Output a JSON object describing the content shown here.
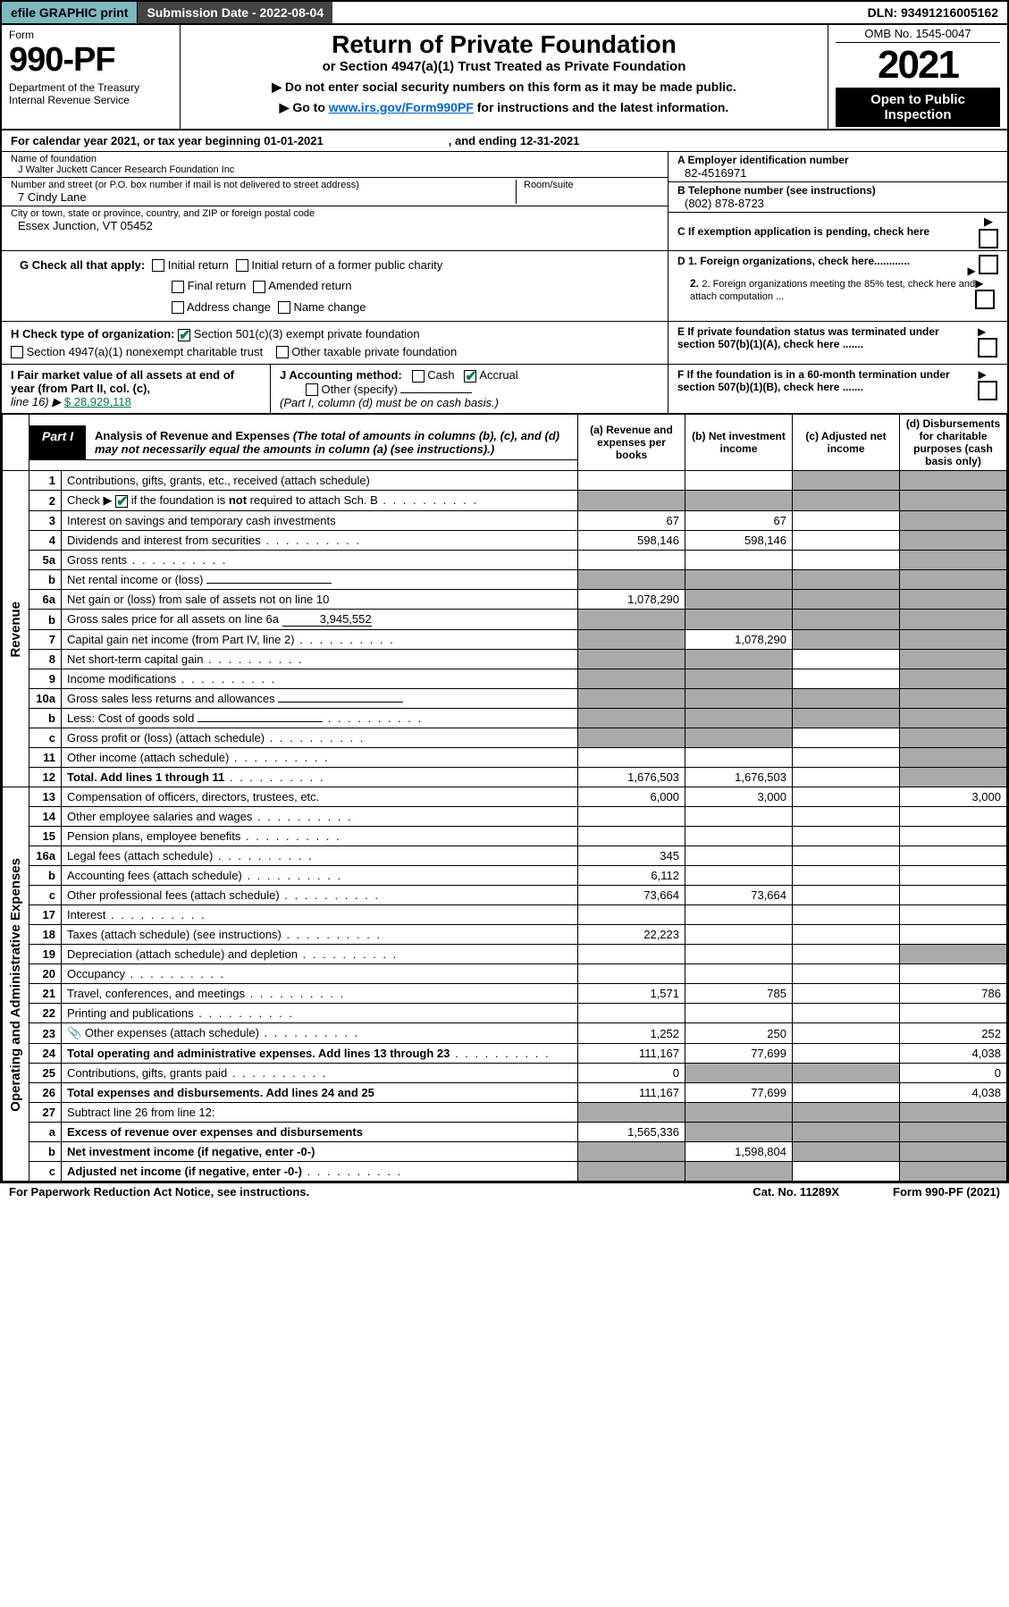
{
  "topbar": {
    "efile": "efile GRAPHIC print",
    "subdate": "Submission Date - 2022-08-04",
    "dln": "DLN: 93491216005162"
  },
  "hdr": {
    "form_lbl": "Form",
    "form_num": "990-PF",
    "dept": "Department of the Treasury\nInternal Revenue Service",
    "title": "Return of Private Foundation",
    "sub": "or Section 4947(a)(1) Trust Treated as Private Foundation",
    "instr1": "▶ Do not enter social security numbers on this form as it may be made public.",
    "instr2": "▶ Go to ",
    "instr2_link": "www.irs.gov/Form990PF",
    "instr2_rest": " for instructions and the latest information.",
    "omb": "OMB No. 1545-0047",
    "year": "2021",
    "open": "Open to Public Inspection"
  },
  "calyr": {
    "pre": "For calendar year 2021, or tax year beginning ",
    "start": "01-01-2021",
    "mid": ", and ending ",
    "end": "12-31-2021"
  },
  "ent": {
    "name_lbl": "Name of foundation",
    "name": "J Walter Juckett Cancer Research Foundation Inc",
    "addr_lbl": "Number and street (or P.O. box number if mail is not delivered to street address)",
    "room_lbl": "Room/suite",
    "addr": "7 Cindy Lane",
    "city_lbl": "City or town, state or province, country, and ZIP or foreign postal code",
    "city": "Essex Junction, VT  05452",
    "a_lbl": "A Employer identification number",
    "a": "82-4516971",
    "b_lbl": "B Telephone number (see instructions)",
    "b": "(802) 878-8723",
    "c_lbl": "C If exemption application is pending, check here"
  },
  "g": {
    "lbl": "G Check all that apply:",
    "opts": [
      "Initial return",
      "Initial return of a former public charity",
      "Final return",
      "Amended return",
      "Address change",
      "Name change"
    ]
  },
  "h": {
    "lbl": "H Check type of organization:",
    "o1": "Section 501(c)(3) exempt private foundation",
    "o2": "Section 4947(a)(1) nonexempt charitable trust",
    "o3": "Other taxable private foundation"
  },
  "d": {
    "d1": "D 1. Foreign organizations, check here............",
    "d2": "2. Foreign organizations meeting the 85% test, check here and attach computation ..."
  },
  "e": "E  If private foundation status was terminated under section 507(b)(1)(A), check here .......",
  "f": "F  If the foundation is in a 60-month termination under section 507(b)(1)(B), check here .......",
  "i": {
    "lbl": "I Fair market value of all assets at end of year (from Part II, col. (c),",
    "line": "line 16) ▶",
    "val": "$  28,929,118"
  },
  "j": {
    "lbl": "J Accounting method:",
    "cash": "Cash",
    "accrual": "Accrual",
    "other": "Other (specify)",
    "note": "(Part I, column (d) must be on cash basis.)"
  },
  "part1": {
    "tag": "Part I",
    "title": "Analysis of Revenue and Expenses ",
    "note": "(The total of amounts in columns (b), (c), and (d) may not necessarily equal the amounts in column (a) (see instructions).)"
  },
  "cols": {
    "a": "(a)   Revenue and expenses per books",
    "b": "(b)   Net investment income",
    "c": "(c)   Adjusted net income",
    "d": "(d)  Disbursements for charitable purposes (cash basis only)"
  },
  "groups": {
    "rev": "Revenue",
    "opex": "Operating and Administrative Expenses"
  },
  "rows": [
    {
      "n": "1",
      "t": "Contributions, gifts, grants, etc., received (attach schedule)",
      "a": "",
      "b": "",
      "c": "s",
      "d": "s"
    },
    {
      "n": "2",
      "t": "Check ▶ ☑ if the foundation is not required to attach Sch. B",
      "t_html": true,
      "a": "s",
      "b": "s",
      "c": "s",
      "d": "s",
      "dots": 1
    },
    {
      "n": "3",
      "t": "Interest on savings and temporary cash investments",
      "a": "67",
      "b": "67",
      "c": "",
      "d": "s"
    },
    {
      "n": "4",
      "t": "Dividends and interest from securities",
      "a": "598,146",
      "b": "598,146",
      "c": "",
      "d": "s",
      "dots": 1
    },
    {
      "n": "5a",
      "t": "Gross rents",
      "a": "",
      "b": "",
      "c": "",
      "d": "s",
      "dots": 1
    },
    {
      "n": "b",
      "t": "Net rental income or (loss)",
      "a": "s",
      "b": "s",
      "c": "s",
      "d": "s",
      "box": 1
    },
    {
      "n": "6a",
      "t": "Net gain or (loss) from sale of assets not on line 10",
      "a": "1,078,290",
      "b": "s",
      "c": "s",
      "d": "s"
    },
    {
      "n": "b",
      "t": "Gross sales price for all assets on line 6a",
      "box_val": "3,945,552",
      "a": "s",
      "b": "s",
      "c": "s",
      "d": "s"
    },
    {
      "n": "7",
      "t": "Capital gain net income (from Part IV, line 2)",
      "a": "s",
      "b": "1,078,290",
      "c": "s",
      "d": "s",
      "dots": 1
    },
    {
      "n": "8",
      "t": "Net short-term capital gain",
      "a": "s",
      "b": "s",
      "c": "",
      "d": "s",
      "dots": 1
    },
    {
      "n": "9",
      "t": "Income modifications",
      "a": "s",
      "b": "s",
      "c": "",
      "d": "s",
      "dots": 1
    },
    {
      "n": "10a",
      "t": "Gross sales less returns and allowances",
      "a": "s",
      "b": "s",
      "c": "s",
      "d": "s",
      "box": 1
    },
    {
      "n": "b",
      "t": "Less: Cost of goods sold",
      "a": "s",
      "b": "s",
      "c": "s",
      "d": "s",
      "box": 1,
      "dots": 1
    },
    {
      "n": "c",
      "t": "Gross profit or (loss) (attach schedule)",
      "a": "s",
      "b": "s",
      "c": "",
      "d": "s",
      "dots": 1
    },
    {
      "n": "11",
      "t": "Other income (attach schedule)",
      "a": "",
      "b": "",
      "c": "",
      "d": "s",
      "dots": 1
    },
    {
      "n": "12",
      "t": "Total. Add lines 1 through 11",
      "a": "1,676,503",
      "b": "1,676,503",
      "c": "",
      "d": "s",
      "bold": 1,
      "dots": 1
    },
    {
      "n": "13",
      "t": "Compensation of officers, directors, trustees, etc.",
      "a": "6,000",
      "b": "3,000",
      "c": "",
      "d": "3,000",
      "sec": "opex"
    },
    {
      "n": "14",
      "t": "Other employee salaries and wages",
      "a": "",
      "b": "",
      "c": "",
      "d": "",
      "dots": 1
    },
    {
      "n": "15",
      "t": "Pension plans, employee benefits",
      "a": "",
      "b": "",
      "c": "",
      "d": "",
      "dots": 1
    },
    {
      "n": "16a",
      "t": "Legal fees (attach schedule)",
      "a": "345",
      "b": "",
      "c": "",
      "d": "",
      "dots": 1
    },
    {
      "n": "b",
      "t": "Accounting fees (attach schedule)",
      "a": "6,112",
      "b": "",
      "c": "",
      "d": "",
      "dots": 1
    },
    {
      "n": "c",
      "t": "Other professional fees (attach schedule)",
      "a": "73,664",
      "b": "73,664",
      "c": "",
      "d": "",
      "dots": 1
    },
    {
      "n": "17",
      "t": "Interest",
      "a": "",
      "b": "",
      "c": "",
      "d": "",
      "dots": 1
    },
    {
      "n": "18",
      "t": "Taxes (attach schedule) (see instructions)",
      "a": "22,223",
      "b": "",
      "c": "",
      "d": "",
      "dots": 1
    },
    {
      "n": "19",
      "t": "Depreciation (attach schedule) and depletion",
      "a": "",
      "b": "",
      "c": "",
      "d": "s",
      "dots": 1
    },
    {
      "n": "20",
      "t": "Occupancy",
      "a": "",
      "b": "",
      "c": "",
      "d": "",
      "dots": 1
    },
    {
      "n": "21",
      "t": "Travel, conferences, and meetings",
      "a": "1,571",
      "b": "785",
      "c": "",
      "d": "786",
      "dots": 1
    },
    {
      "n": "22",
      "t": "Printing and publications",
      "a": "",
      "b": "",
      "c": "",
      "d": "",
      "dots": 1
    },
    {
      "n": "23",
      "t": "Other expenses (attach schedule)",
      "a": "1,252",
      "b": "250",
      "c": "",
      "d": "252",
      "icon": "📎",
      "dots": 1
    },
    {
      "n": "24",
      "t": "Total operating and administrative expenses. Add lines 13 through 23",
      "a": "111,167",
      "b": "77,699",
      "c": "",
      "d": "4,038",
      "bold": 1,
      "dots": 1
    },
    {
      "n": "25",
      "t": "Contributions, gifts, grants paid",
      "a": "0",
      "b": "s",
      "c": "s",
      "d": "0",
      "dots": 1
    },
    {
      "n": "26",
      "t": "Total expenses and disbursements. Add lines 24 and 25",
      "a": "111,167",
      "b": "77,699",
      "c": "",
      "d": "4,038",
      "bold": 1
    },
    {
      "n": "27",
      "t": "Subtract line 26 from line 12:",
      "a": "s",
      "b": "s",
      "c": "s",
      "d": "s"
    },
    {
      "n": "a",
      "t": "Excess of revenue over expenses and disbursements",
      "a": "1,565,336",
      "b": "s",
      "c": "s",
      "d": "s",
      "bold": 1
    },
    {
      "n": "b",
      "t": "Net investment income (if negative, enter -0-)",
      "a": "s",
      "b": "1,598,804",
      "c": "s",
      "d": "s",
      "bold": 1
    },
    {
      "n": "c",
      "t": "Adjusted net income (if negative, enter -0-)",
      "a": "s",
      "b": "s",
      "c": "",
      "d": "s",
      "bold": 1,
      "dots": 1
    }
  ],
  "foot": {
    "l": "For Paperwork Reduction Act Notice, see instructions.",
    "c": "Cat. No. 11289X",
    "r": "Form 990-PF (2021)"
  }
}
